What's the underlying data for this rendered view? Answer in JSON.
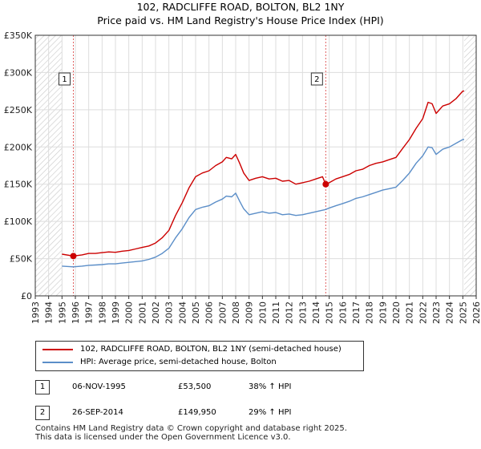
{
  "chart_data": {
    "type": "line",
    "title": "102, RADCLIFFE ROAD, BOLTON, BL2 1NY",
    "subtitle": "Price paid vs. HM Land Registry's House Price Index (HPI)",
    "xlim": [
      1993,
      2026
    ],
    "ylim": [
      0,
      350000
    ],
    "x_ticks": [
      "1993",
      "1994",
      "1995",
      "1996",
      "1997",
      "1998",
      "1999",
      "2000",
      "2001",
      "2002",
      "2003",
      "2004",
      "2005",
      "2006",
      "2007",
      "2008",
      "2009",
      "2010",
      "2011",
      "2012",
      "2013",
      "2014",
      "2015",
      "2016",
      "2017",
      "2018",
      "2019",
      "2020",
      "2021",
      "2022",
      "2023",
      "2024",
      "2025",
      "2026"
    ],
    "y_ticks": [
      {
        "value": 0,
        "label": "£0"
      },
      {
        "value": 50000,
        "label": "£50K"
      },
      {
        "value": 100000,
        "label": "£100K"
      },
      {
        "value": 150000,
        "label": "£150K"
      },
      {
        "value": 200000,
        "label": "£200K"
      },
      {
        "value": 250000,
        "label": "£250K"
      },
      {
        "value": 300000,
        "label": "£300K"
      },
      {
        "value": 350000,
        "label": "£350K"
      }
    ],
    "hatched_ranges": [
      [
        1993,
        1995.0
      ],
      [
        2025.1,
        2026
      ]
    ],
    "series": [
      {
        "name": "102, RADCLIFFE ROAD, BOLTON, BL2 1NY (semi-detached house)",
        "color": "#cc0000",
        "x": [
          1995.0,
          1995.85,
          1996.5,
          1997,
          1997.5,
          1998,
          1998.5,
          1999,
          1999.5,
          2000,
          2000.5,
          2001,
          2001.5,
          2002,
          2002.5,
          2003,
          2003.5,
          2004,
          2004.5,
          2005,
          2005.5,
          2006,
          2006.5,
          2007,
          2007.3,
          2007.7,
          2008,
          2008.3,
          2008.6,
          2009,
          2009.5,
          2010,
          2010.5,
          2011,
          2011.5,
          2012,
          2012.5,
          2013,
          2013.5,
          2014,
          2014.5,
          2014.74,
          2015,
          2015.5,
          2016,
          2016.5,
          2017,
          2017.5,
          2018,
          2018.5,
          2019,
          2019.5,
          2020,
          2020.5,
          2021,
          2021.5,
          2022,
          2022.4,
          2022.7,
          2023,
          2023.5,
          2024,
          2024.5,
          2025,
          2025.1
        ],
        "values": [
          56000,
          53500,
          55000,
          57000,
          57000,
          58000,
          59000,
          58500,
          60000,
          61000,
          63000,
          65000,
          67000,
          71000,
          78000,
          88000,
          108000,
          125000,
          145000,
          160000,
          165000,
          168000,
          175000,
          180000,
          186000,
          184000,
          190000,
          178000,
          165000,
          155000,
          158000,
          160000,
          157000,
          158000,
          154000,
          155000,
          150000,
          152000,
          154000,
          157000,
          160000,
          149950,
          152000,
          157000,
          160000,
          163000,
          168000,
          170000,
          175000,
          178000,
          180000,
          183000,
          186000,
          198000,
          210000,
          225000,
          238000,
          260000,
          258000,
          245000,
          255000,
          258000,
          265000,
          275000,
          275000
        ]
      },
      {
        "name": "HPI: Average price, semi-detached house, Bolton",
        "color": "#5b8ec8",
        "x": [
          1995.0,
          1995.85,
          1996.5,
          1997,
          1997.5,
          1998,
          1998.5,
          1999,
          1999.5,
          2000,
          2000.5,
          2001,
          2001.5,
          2002,
          2002.5,
          2003,
          2003.5,
          2004,
          2004.5,
          2005,
          2005.5,
          2006,
          2006.5,
          2007,
          2007.3,
          2007.7,
          2008,
          2008.3,
          2008.6,
          2009,
          2009.5,
          2010,
          2010.5,
          2011,
          2011.5,
          2012,
          2012.5,
          2013,
          2013.5,
          2014,
          2014.5,
          2014.74,
          2015,
          2015.5,
          2016,
          2016.5,
          2017,
          2017.5,
          2018,
          2018.5,
          2019,
          2019.5,
          2020,
          2020.5,
          2021,
          2021.5,
          2022,
          2022.4,
          2022.7,
          2023,
          2023.5,
          2024,
          2024.5,
          2025,
          2025.1
        ],
        "values": [
          40000,
          39000,
          40000,
          41000,
          41500,
          42000,
          43000,
          43000,
          44000,
          45000,
          46000,
          47000,
          49000,
          52000,
          57000,
          64000,
          78000,
          90000,
          105000,
          116000,
          119000,
          121000,
          126000,
          130000,
          134000,
          133000,
          138000,
          127000,
          117000,
          109000,
          111000,
          113000,
          111000,
          112000,
          109000,
          110000,
          108000,
          109000,
          111000,
          113000,
          115000,
          116000,
          118000,
          121000,
          124000,
          127000,
          131000,
          133000,
          136000,
          139000,
          142000,
          144000,
          146000,
          155000,
          165000,
          178000,
          188000,
          200000,
          199000,
          190000,
          197000,
          200000,
          205000,
          210000,
          210000
        ]
      }
    ],
    "annotations": [
      {
        "id": "1",
        "x": 1995.85,
        "y": 53500
      },
      {
        "id": "2",
        "x": 2014.74,
        "y": 149950
      }
    ]
  },
  "legend": {
    "red_label": "102, RADCLIFFE ROAD, BOLTON, BL2 1NY (semi-detached house)",
    "blue_label": "HPI: Average price, semi-detached house, Bolton"
  },
  "transactions": [
    {
      "id": "1",
      "date": "06-NOV-1995",
      "price": "£53,500",
      "hpi": "38% ↑ HPI"
    },
    {
      "id": "2",
      "date": "26-SEP-2014",
      "price": "£149,950",
      "hpi": "29% ↑ HPI"
    }
  ],
  "footer": {
    "line1": "Contains HM Land Registry data © Crown copyright and database right 2025.",
    "line2": "This data is licensed under the Open Government Licence v3.0."
  },
  "colors": {
    "red": "#cc0000",
    "blue": "#5b8ec8",
    "grid": "#dddddd",
    "vline": "#e06060"
  }
}
